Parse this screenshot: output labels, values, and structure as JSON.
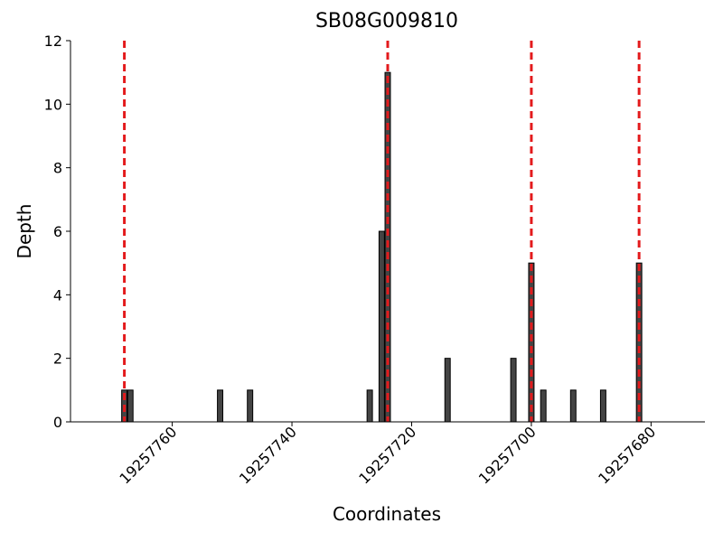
{
  "chart_data": {
    "type": "bar",
    "title": "SB08G009810",
    "xlabel": "Coordinates",
    "ylabel": "Depth",
    "x": [
      19257768,
      19257767,
      19257752,
      19257747,
      19257727,
      19257725,
      19257724,
      19257714,
      19257703,
      19257700,
      19257698,
      19257693,
      19257688,
      19257682
    ],
    "values": [
      1,
      1,
      1,
      1,
      1,
      6,
      11,
      2,
      2,
      5,
      1,
      1,
      1,
      5
    ],
    "color": "#444444",
    "vlines": [
      19257768,
      19257724,
      19257700,
      19257682
    ],
    "vline_color": "#e31a1c",
    "xlim": [
      19257777,
      19257671
    ],
    "xticks": [
      19257760,
      19257740,
      19257720,
      19257700,
      19257680
    ],
    "ylim": [
      0,
      12
    ],
    "yticks": [
      0,
      2,
      4,
      6,
      8,
      10,
      12
    ]
  }
}
